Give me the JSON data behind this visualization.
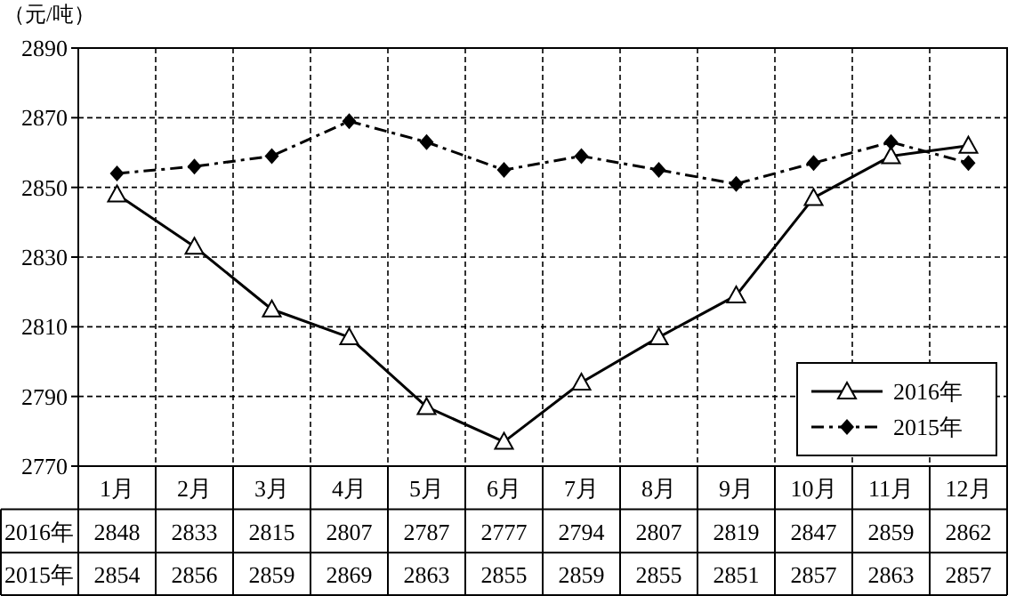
{
  "chart_data": {
    "type": "line",
    "ylabel": "（元/吨）",
    "categories": [
      "1月",
      "2月",
      "3月",
      "4月",
      "5月",
      "6月",
      "7月",
      "8月",
      "9月",
      "10月",
      "11月",
      "12月"
    ],
    "series": [
      {
        "name": "2016年",
        "color": "#000000",
        "marker": "triangle",
        "line_style": "solid",
        "values": [
          2848,
          2833,
          2815,
          2807,
          2787,
          2777,
          2794,
          2807,
          2819,
          2847,
          2859,
          2862
        ]
      },
      {
        "name": "2015年",
        "color": "#000000",
        "marker": "diamond",
        "line_style": "dashed",
        "values": [
          2854,
          2856,
          2859,
          2869,
          2863,
          2855,
          2859,
          2855,
          2851,
          2857,
          2863,
          2857
        ]
      }
    ],
    "ylim": [
      2770,
      2890
    ],
    "yticks": [
      2770,
      2790,
      2810,
      2830,
      2850,
      2870,
      2890
    ],
    "grid": true,
    "legend": "bottom right",
    "data_labels": true
  }
}
